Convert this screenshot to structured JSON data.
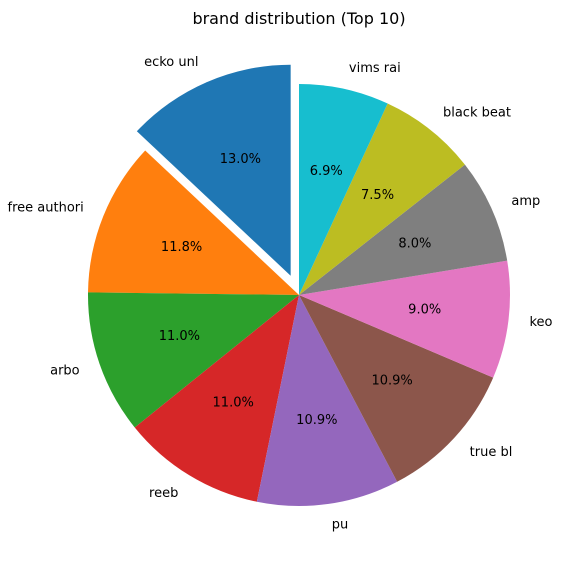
{
  "chart_data": {
    "type": "pie",
    "title": "brand distribution (Top 10)",
    "start_angle_deg": 90,
    "direction": "counterclockwise",
    "exploded": [
      "ecko unl"
    ],
    "slices": [
      {
        "label": "ecko unl",
        "value": 13.0,
        "pct_label": "13.0%",
        "color": "#1f77b4"
      },
      {
        "label": "free authori",
        "value": 11.8,
        "pct_label": "11.8%",
        "color": "#ff7f0e"
      },
      {
        "label": "arbo",
        "value": 11.0,
        "pct_label": "11.0%",
        "color": "#2ca02c"
      },
      {
        "label": "reeb",
        "value": 11.0,
        "pct_label": "11.0%",
        "color": "#d62728"
      },
      {
        "label": "pu",
        "value": 10.9,
        "pct_label": "10.9%",
        "color": "#9467bd"
      },
      {
        "label": "true bl",
        "value": 10.9,
        "pct_label": "10.9%",
        "color": "#8c564b"
      },
      {
        "label": "keo",
        "value": 9.0,
        "pct_label": "9.0%",
        "color": "#e377c2"
      },
      {
        "label": "amp",
        "value": 8.0,
        "pct_label": "8.0%",
        "color": "#7f7f7f"
      },
      {
        "label": "black beat",
        "value": 7.5,
        "pct_label": "7.5%",
        "color": "#bcbd22"
      },
      {
        "label": "vims rai",
        "value": 6.9,
        "pct_label": "6.9%",
        "color": "#17becf"
      }
    ]
  }
}
